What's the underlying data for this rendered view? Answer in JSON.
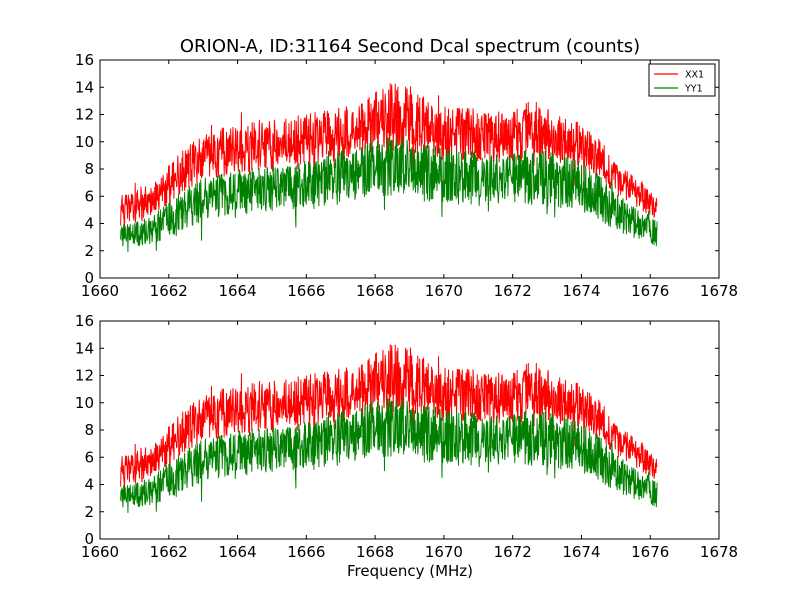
{
  "figure": {
    "title": "ORION-A, ID:31164 Second Dcal spectrum (counts)",
    "xlabel": "Frequency (MHz)"
  },
  "colors": {
    "XX1": "#ff0000",
    "YY1": "#008000",
    "axes": "#000000",
    "background": "#ffffff"
  },
  "chart_data": [
    {
      "type": "line",
      "xlim": [
        1660,
        1678
      ],
      "ylim": [
        0,
        16
      ],
      "xticks": [
        "1660",
        "1662",
        "1664",
        "1666",
        "1668",
        "1670",
        "1672",
        "1674",
        "1676",
        "1678"
      ],
      "yticks": [
        "0",
        "2",
        "4",
        "6",
        "8",
        "10",
        "12",
        "14",
        "16"
      ],
      "grid": false,
      "legend": {
        "placement": "top-right",
        "entries": [
          "XX1",
          "YY1"
        ]
      },
      "series": [
        {
          "name": "XX1",
          "x_range": [
            1660.6,
            1676.2
          ],
          "envelope": {
            "x": [
              1660.6,
              1661.0,
              1661.5,
              1662.0,
              1662.5,
              1663.0,
              1663.5,
              1664.0,
              1664.5,
              1665.0,
              1665.5,
              1666.0,
              1666.5,
              1667.0,
              1667.5,
              1668.0,
              1668.5,
              1669.0,
              1669.5,
              1670.0,
              1670.5,
              1671.0,
              1671.5,
              1672.0,
              1672.5,
              1673.0,
              1673.5,
              1674.0,
              1674.5,
              1675.0,
              1675.5,
              1676.0,
              1676.2
            ],
            "low": [
              3.8,
              4.0,
              4.4,
              5.5,
              6.4,
              7.2,
              7.4,
              7.6,
              7.8,
              8.0,
              8.1,
              8.2,
              8.4,
              8.7,
              9.0,
              9.3,
              9.3,
              9.1,
              9.0,
              8.8,
              8.7,
              8.6,
              8.5,
              8.5,
              8.6,
              8.5,
              8.4,
              8.0,
              7.3,
              6.1,
              5.3,
              4.6,
              4.3
            ],
            "high": [
              6.1,
              6.4,
              6.9,
              8.3,
              9.6,
              10.6,
              11.0,
              11.4,
              11.6,
              11.8,
              11.8,
              12.0,
              12.3,
              12.6,
              13.0,
              13.6,
              14.5,
              14.0,
              13.2,
              12.8,
              12.6,
              12.4,
              12.2,
              12.2,
              13.0,
              12.4,
              12.0,
              11.4,
              10.3,
              8.6,
              7.6,
              6.6,
              6.1
            ]
          }
        },
        {
          "name": "YY1",
          "x_range": [
            1660.6,
            1676.2
          ],
          "envelope": {
            "x": [
              1660.6,
              1661.0,
              1661.5,
              1662.0,
              1662.5,
              1663.0,
              1663.5,
              1664.0,
              1664.5,
              1665.0,
              1665.5,
              1666.0,
              1666.5,
              1667.0,
              1667.5,
              1668.0,
              1668.5,
              1669.0,
              1669.5,
              1670.0,
              1670.5,
              1671.0,
              1671.5,
              1672.0,
              1672.5,
              1673.0,
              1673.5,
              1674.0,
              1674.5,
              1675.0,
              1675.5,
              1676.0,
              1676.2
            ],
            "low": [
              2.1,
              2.3,
              2.5,
              3.0,
              3.6,
              4.1,
              4.4,
              4.6,
              4.8,
              4.9,
              5.0,
              5.1,
              5.3,
              5.6,
              5.8,
              6.0,
              6.0,
              5.8,
              5.6,
              5.5,
              5.4,
              5.3,
              5.3,
              5.3,
              5.4,
              5.3,
              5.1,
              4.8,
              4.3,
              3.5,
              2.9,
              2.4,
              2.2
            ],
            "high": [
              3.9,
              4.1,
              4.5,
              5.6,
              6.6,
              7.4,
              7.7,
              8.0,
              8.1,
              8.3,
              8.4,
              8.6,
              8.9,
              9.3,
              9.7,
              10.2,
              10.4,
              10.1,
              9.8,
              9.6,
              9.4,
              9.3,
              9.2,
              9.2,
              9.7,
              9.3,
              9.0,
              8.5,
              7.7,
              6.3,
              5.3,
              4.6,
              4.2
            ]
          }
        }
      ]
    },
    {
      "type": "line",
      "xlim": [
        1660,
        1678
      ],
      "ylim": [
        0,
        16
      ],
      "xticks": [
        "1660",
        "1662",
        "1664",
        "1666",
        "1668",
        "1670",
        "1672",
        "1674",
        "1676",
        "1678"
      ],
      "yticks": [
        "0",
        "2",
        "4",
        "6",
        "8",
        "10",
        "12",
        "14",
        "16"
      ],
      "grid": false,
      "series": [
        {
          "name": "XX1",
          "x_range": [
            1660.6,
            1676.2
          ],
          "envelope": {
            "x": [
              1660.6,
              1661.0,
              1661.5,
              1662.0,
              1662.5,
              1663.0,
              1663.5,
              1664.0,
              1664.5,
              1665.0,
              1665.5,
              1666.0,
              1666.5,
              1667.0,
              1667.5,
              1668.0,
              1668.5,
              1669.0,
              1669.5,
              1670.0,
              1670.5,
              1671.0,
              1671.5,
              1672.0,
              1672.5,
              1673.0,
              1673.5,
              1674.0,
              1674.5,
              1675.0,
              1675.5,
              1676.0,
              1676.2
            ],
            "low": [
              3.8,
              4.0,
              4.4,
              5.5,
              6.4,
              7.2,
              7.4,
              7.6,
              7.8,
              8.0,
              8.1,
              8.2,
              8.4,
              8.7,
              9.0,
              9.3,
              9.3,
              9.1,
              9.0,
              8.8,
              8.7,
              8.6,
              8.5,
              8.5,
              8.6,
              8.5,
              8.4,
              8.0,
              7.3,
              6.1,
              5.3,
              4.6,
              4.3
            ],
            "high": [
              6.1,
              6.4,
              6.9,
              8.3,
              9.6,
              10.6,
              11.0,
              11.4,
              11.6,
              11.8,
              11.8,
              12.0,
              12.3,
              12.6,
              13.0,
              13.6,
              14.5,
              14.0,
              13.2,
              12.8,
              12.6,
              12.4,
              12.2,
              12.2,
              13.0,
              12.4,
              12.0,
              11.4,
              10.3,
              8.6,
              7.6,
              6.6,
              6.1
            ]
          }
        },
        {
          "name": "YY1",
          "x_range": [
            1660.6,
            1676.2
          ],
          "envelope": {
            "x": [
              1660.6,
              1661.0,
              1661.5,
              1662.0,
              1662.5,
              1663.0,
              1663.5,
              1664.0,
              1664.5,
              1665.0,
              1665.5,
              1666.0,
              1666.5,
              1667.0,
              1667.5,
              1668.0,
              1668.5,
              1669.0,
              1669.5,
              1670.0,
              1670.5,
              1671.0,
              1671.5,
              1672.0,
              1672.5,
              1673.0,
              1673.5,
              1674.0,
              1674.5,
              1675.0,
              1675.5,
              1676.0,
              1676.2
            ],
            "low": [
              2.1,
              2.3,
              2.5,
              3.0,
              3.6,
              4.1,
              4.4,
              4.6,
              4.8,
              4.9,
              5.0,
              5.1,
              5.3,
              5.6,
              5.8,
              6.0,
              6.0,
              5.8,
              5.6,
              5.5,
              5.4,
              5.3,
              5.3,
              5.3,
              5.4,
              5.3,
              5.1,
              4.8,
              4.3,
              3.5,
              2.9,
              2.4,
              2.2
            ],
            "high": [
              3.9,
              4.1,
              4.5,
              5.6,
              6.6,
              7.4,
              7.7,
              8.0,
              8.1,
              8.3,
              8.4,
              8.6,
              8.9,
              9.3,
              9.7,
              10.2,
              10.4,
              10.1,
              9.8,
              9.6,
              9.4,
              9.3,
              9.2,
              9.2,
              9.7,
              9.3,
              9.0,
              8.5,
              7.7,
              6.3,
              5.3,
              4.6,
              4.2
            ]
          }
        }
      ]
    }
  ]
}
